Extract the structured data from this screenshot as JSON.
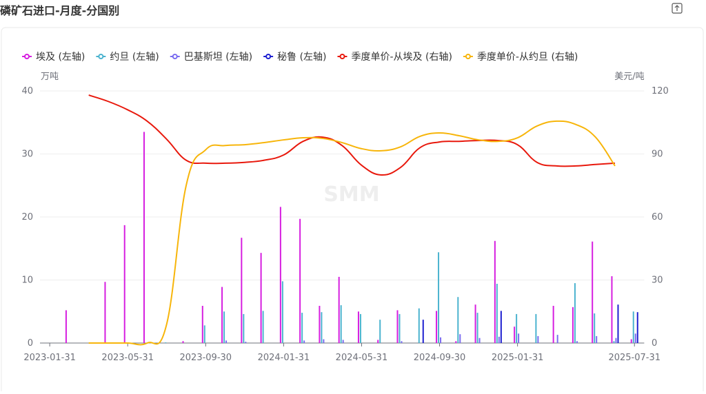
{
  "chart_data": {
    "type": "bar-line",
    "title": "磷矿石进口-月度-分国别",
    "y_label": "万吨",
    "y2_label": "美元/吨",
    "watermark": "SMM",
    "categories": [
      "2023-01-31",
      null,
      null,
      null,
      "2023-05-31",
      null,
      null,
      null,
      "2023-09-30",
      null,
      null,
      null,
      "2024-01-31",
      null,
      null,
      null,
      "2024-05-31",
      null,
      null,
      null,
      "2024-09-30",
      null,
      null,
      null,
      "2025-01-31",
      null,
      null,
      null,
      null,
      null,
      "2025-07-31"
    ],
    "ylim": [
      0,
      40
    ],
    "yticks": [
      0,
      10,
      20,
      30,
      40
    ],
    "y2lim": [
      0,
      120
    ],
    "y2ticks": [
      0,
      30,
      60,
      90,
      120
    ],
    "grid": true,
    "series": [
      {
        "name": "埃及 (左轴)",
        "type": "bar",
        "color": "#d61ee0",
        "values": [
          null,
          5.2,
          null,
          9.7,
          18.7,
          33.5,
          null,
          0.3,
          5.9,
          8.9,
          16.7,
          14.3,
          21.6,
          19.7,
          5.9,
          10.5,
          5.0,
          0.5,
          5.2,
          null,
          5.1,
          0.3,
          6.1,
          16.2,
          2.6,
          null,
          5.9,
          5.7,
          16.1,
          10.6,
          0.6
        ]
      },
      {
        "name": "约旦 (左轴)",
        "type": "bar",
        "color": "#4bb3cf",
        "values": [
          null,
          null,
          null,
          null,
          null,
          null,
          0.1,
          null,
          2.8,
          5.0,
          4.6,
          5.1,
          9.8,
          4.8,
          4.9,
          6.0,
          4.6,
          3.7,
          4.6,
          5.5,
          14.4,
          7.3,
          4.8,
          9.4,
          4.6,
          4.6,
          null,
          9.5,
          4.7,
          0.3,
          5.0
        ]
      },
      {
        "name": "巴基斯坦 (左轴)",
        "type": "bar",
        "color": "#7a6cf0",
        "values": [
          null,
          null,
          null,
          null,
          null,
          null,
          null,
          null,
          null,
          0.4,
          0.2,
          null,
          null,
          0.4,
          0.6,
          0.5,
          null,
          null,
          0.3,
          null,
          0.9,
          1.4,
          0.8,
          1.0,
          1.5,
          1.1,
          1.3,
          0.3,
          1.1,
          0.8,
          1.5
        ]
      },
      {
        "name": "秘鲁 (左轴)",
        "type": "bar",
        "color": "#1d1fd0",
        "values": [
          null,
          null,
          null,
          null,
          null,
          null,
          null,
          null,
          null,
          null,
          null,
          null,
          null,
          null,
          null,
          null,
          null,
          null,
          null,
          3.7,
          null,
          null,
          null,
          5.1,
          null,
          null,
          null,
          null,
          null,
          6.1,
          4.9
        ]
      },
      {
        "name": "季度单价-从埃及 (右轴)",
        "type": "line",
        "axis": "y2",
        "color": "#e8180c",
        "values": [
          null,
          null,
          118,
          115,
          111,
          105.6,
          97,
          87,
          85.6,
          85.6,
          86,
          87,
          89.5,
          96,
          98,
          94,
          84.6,
          80,
          83.6,
          93,
          95.7,
          96,
          96.4,
          96.4,
          94.4,
          86,
          84.3,
          84.3,
          85,
          85.6,
          null
        ]
      },
      {
        "name": "季度单价-从约旦 (右轴)",
        "type": "line",
        "axis": "y2",
        "color": "#f7b50a",
        "values": [
          null,
          null,
          0,
          0,
          0,
          0,
          9,
          75,
          92,
          94,
          94.4,
          95.4,
          96.7,
          97.7,
          97.4,
          95.4,
          92.5,
          91.5,
          93.4,
          98.4,
          100,
          98.7,
          96.7,
          96,
          97.7,
          103.3,
          105.6,
          104,
          98,
          84.3,
          null
        ]
      }
    ]
  }
}
